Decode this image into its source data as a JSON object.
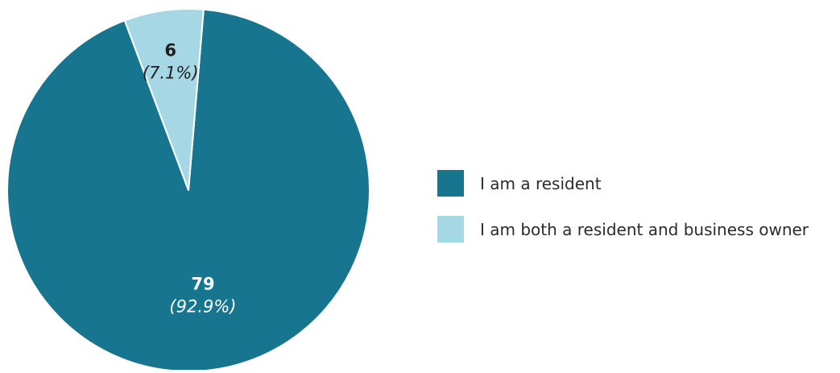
{
  "chart_data": {
    "type": "pie",
    "slices": [
      {
        "label": "I am a resident",
        "value": 79,
        "percent_label": "(92.9%)",
        "color": "#17758f",
        "label_color": "#ffffff"
      },
      {
        "label": "I am both a resident and business owner",
        "value": 6,
        "percent_label": "(7.1%)",
        "color": "#a6d7e5",
        "label_color": "#1f1f1f"
      }
    ],
    "start_angle_deg": 4.8,
    "legend_position": "right"
  }
}
